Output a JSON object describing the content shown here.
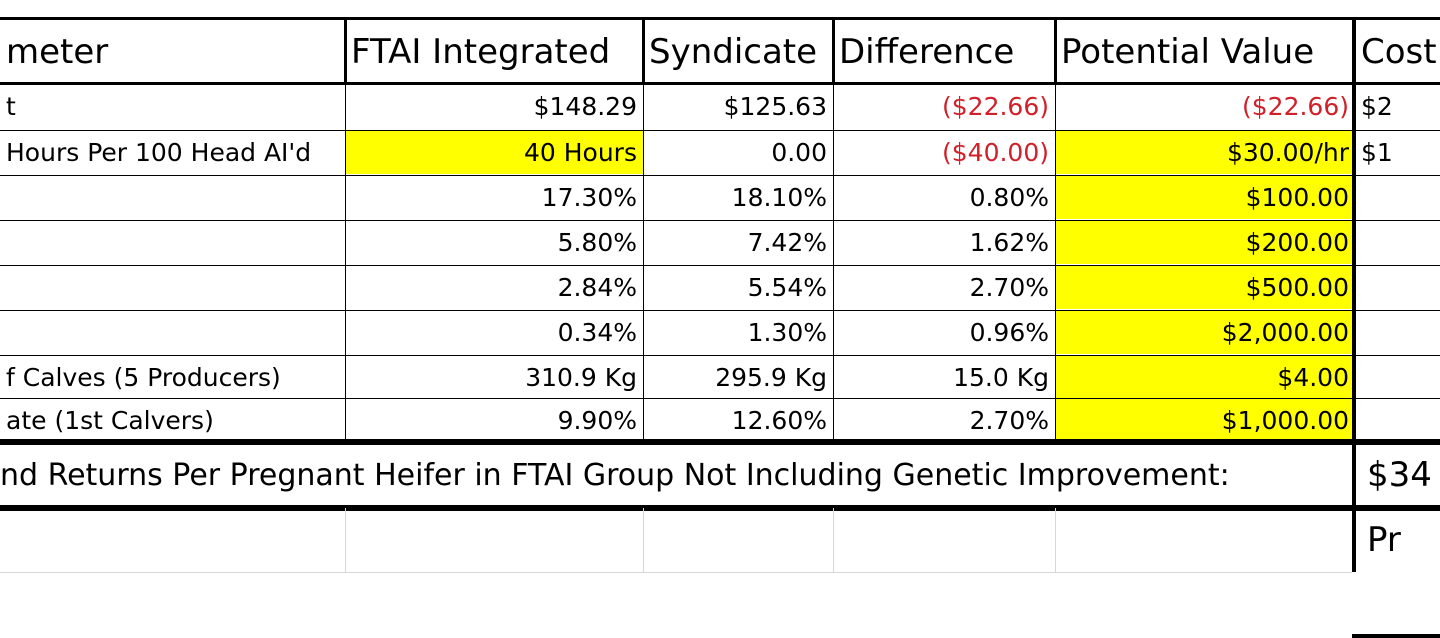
{
  "header": [
    "meter",
    "FTAI Integrated",
    "Syndicate",
    "Difference",
    "Potential Value",
    "Cost"
  ],
  "rows": [
    {
      "label": "t",
      "ftai": "$148.29",
      "syn": "$125.63",
      "diff": "($22.66)",
      "diff_neg": true,
      "pot": "($22.66)",
      "pot_neg": true,
      "pot_hl": false,
      "cost": "$2"
    },
    {
      "label": " Hours Per 100 Head AI'd",
      "ftai": "40 Hours",
      "ftai_hl": true,
      "syn": "0.00",
      "diff": "($40.00)",
      "diff_neg": true,
      "pot": "$30.00/hr",
      "pot_hl": true,
      "cost": "$1"
    },
    {
      "label": "",
      "ftai": "17.30%",
      "syn": "18.10%",
      "diff": "0.80%",
      "pot": "$100.00",
      "pot_hl": true,
      "cost": ""
    },
    {
      "label": "",
      "ftai": "5.80%",
      "syn": "7.42%",
      "diff": "1.62%",
      "pot": "$200.00",
      "pot_hl": true,
      "cost": ""
    },
    {
      "label": "",
      "ftai": "2.84%",
      "syn": "5.54%",
      "diff": "2.70%",
      "pot": "$500.00",
      "pot_hl": true,
      "cost": ""
    },
    {
      "label": "",
      "ftai": "0.34%",
      "syn": "1.30%",
      "diff": "0.96%",
      "pot": "$2,000.00",
      "pot_hl": true,
      "cost": ""
    },
    {
      "label": "f Calves (5 Producers)",
      "ftai": "310.9 Kg",
      "syn": "295.9 Kg",
      "diff": "15.0 Kg",
      "pot": "$4.00",
      "pot_hl": true,
      "cost": ""
    },
    {
      "label": "ate (1st Calvers)",
      "ftai": "9.90%",
      "syn": "12.60%",
      "diff": "2.70%",
      "pot": "$1,000.00",
      "pot_hl": true,
      "cost": ""
    }
  ],
  "summary": {
    "text": "nd Returns Per Pregnant Heifer in FTAI Group Not Including Genetic Improvement:",
    "value": "$34"
  },
  "footer": {
    "value": "Pr"
  }
}
